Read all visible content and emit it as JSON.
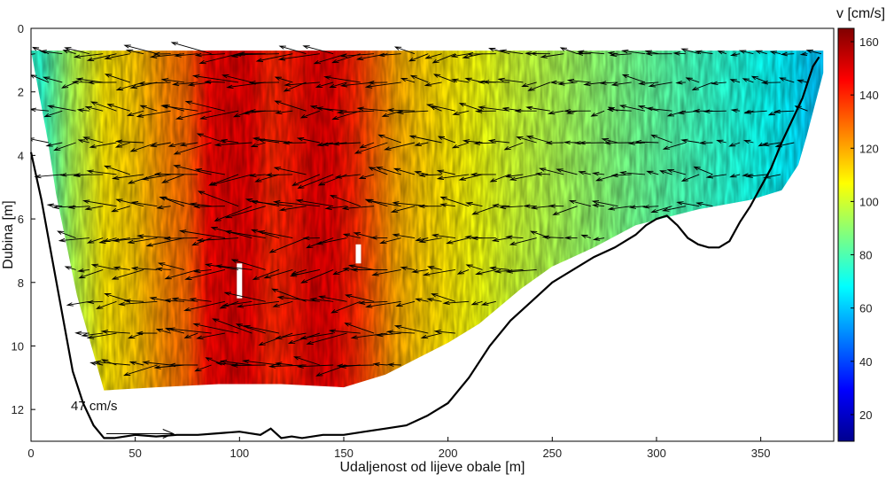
{
  "chart_data": {
    "type": "heatmap",
    "title": "",
    "xlabel": "Udaljenost od lijeve obale [m]",
    "ylabel": "Dubina [m]",
    "xlim": [
      0,
      385
    ],
    "ylim": [
      13,
      0
    ],
    "y_reversed": true,
    "xticks": [
      0,
      50,
      100,
      150,
      200,
      250,
      300,
      350
    ],
    "yticks": [
      0,
      2,
      4,
      6,
      8,
      10,
      12
    ],
    "colorbar": {
      "label": "v [cm/s]",
      "range": [
        10,
        165
      ],
      "ticks": [
        20,
        40,
        60,
        80,
        100,
        120,
        140,
        160
      ],
      "colormap": "jet"
    },
    "velocity_profile": {
      "x": [
        5,
        20,
        35,
        50,
        65,
        75,
        85,
        95,
        105,
        115,
        125,
        135,
        145,
        155,
        165,
        175,
        185,
        200,
        215,
        230,
        250,
        270,
        290,
        310,
        330,
        350,
        365,
        375
      ],
      "v_cm_s": [
        75,
        95,
        110,
        115,
        125,
        130,
        145,
        150,
        148,
        140,
        142,
        150,
        148,
        140,
        130,
        120,
        115,
        110,
        105,
        100,
        95,
        90,
        85,
        80,
        75,
        70,
        65,
        60
      ]
    },
    "bed_profile": {
      "x": [
        0,
        5,
        10,
        15,
        20,
        25,
        30,
        35,
        40,
        50,
        60,
        70,
        80,
        90,
        100,
        110,
        115,
        120,
        125,
        130,
        140,
        150,
        160,
        170,
        180,
        190,
        200,
        210,
        220,
        230,
        240,
        250,
        260,
        270,
        280,
        290,
        295,
        300,
        305,
        310,
        315,
        320,
        325,
        330,
        335,
        340,
        345,
        350,
        355,
        360,
        365,
        370,
        375,
        378
      ],
      "depth": [
        3.9,
        5.4,
        7.2,
        9.0,
        10.8,
        11.8,
        12.5,
        12.9,
        12.9,
        12.8,
        12.85,
        12.8,
        12.8,
        12.75,
        12.7,
        12.8,
        12.6,
        12.9,
        12.85,
        12.9,
        12.8,
        12.8,
        12.7,
        12.6,
        12.5,
        12.2,
        11.8,
        11.0,
        10.0,
        9.2,
        8.6,
        8.0,
        7.6,
        7.2,
        6.9,
        6.5,
        6.2,
        6.0,
        5.9,
        6.2,
        6.6,
        6.8,
        6.9,
        6.9,
        6.7,
        6.1,
        5.6,
        5.0,
        4.4,
        3.6,
        2.9,
        2.2,
        1.2,
        0.9
      ]
    },
    "measured_area_outline": {
      "x": [
        0,
        8,
        12,
        22,
        35,
        60,
        90,
        120,
        150,
        170,
        185,
        200,
        215,
        235,
        250,
        270,
        290,
        320,
        345,
        360,
        368,
        372,
        376,
        380,
        380,
        0
      ],
      "depth": [
        0.7,
        3.5,
        5.2,
        8.4,
        11.4,
        11.3,
        11.2,
        11.2,
        11.3,
        10.9,
        10.4,
        9.9,
        9.3,
        8.2,
        7.5,
        6.9,
        6.2,
        5.7,
        5.4,
        5.1,
        4.3,
        3.4,
        2.4,
        1.4,
        0.7,
        0.7
      ]
    },
    "arrow_rows_depth": [
      0.8,
      1.7,
      2.6,
      3.6,
      4.6,
      5.6,
      6.6,
      7.6,
      8.6,
      9.6,
      10.6
    ],
    "scale_arrow": {
      "label": "47 cm/s",
      "magnitude_cm_s": 47,
      "x": 20,
      "depth": 12.4
    },
    "gaps": [
      {
        "x": 100,
        "depth_from": 7.4,
        "depth_to": 8.5
      },
      {
        "x": 157,
        "depth_from": 6.8,
        "depth_to": 7.4
      }
    ]
  }
}
